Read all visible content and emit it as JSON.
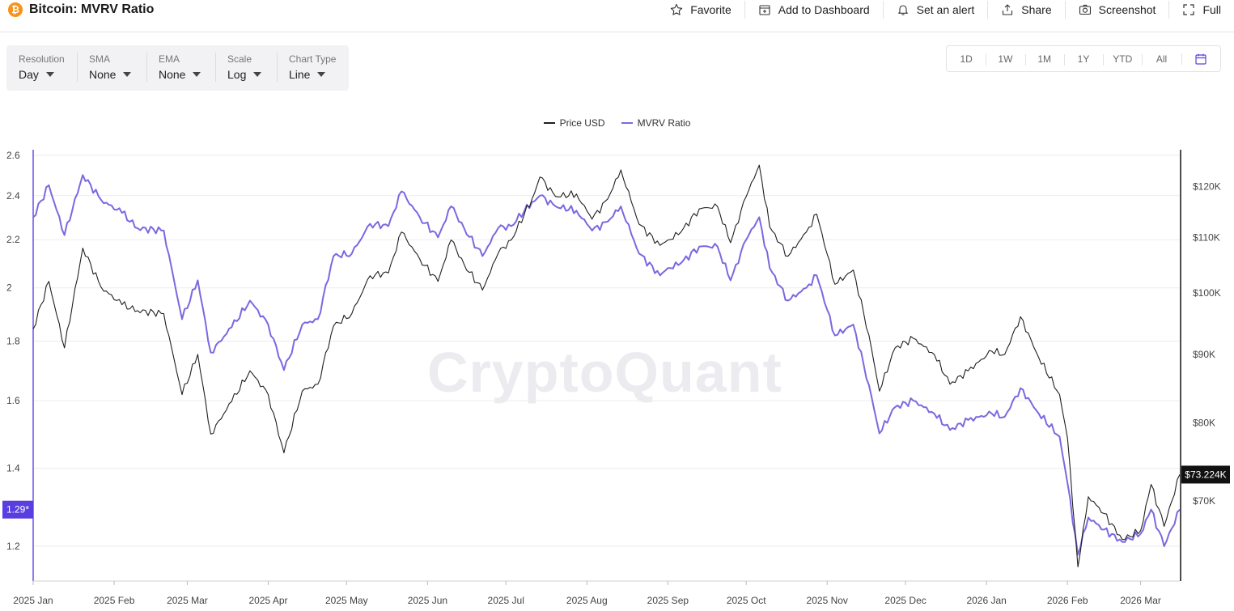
{
  "header": {
    "title": "Bitcoin: MVRV Ratio",
    "actions": [
      {
        "label": "Favorite",
        "icon": "star-icon"
      },
      {
        "label": "Add to Dashboard",
        "icon": "add-dashboard-icon"
      },
      {
        "label": "Set an alert",
        "icon": "bell-icon"
      },
      {
        "label": "Share",
        "icon": "share-icon"
      },
      {
        "label": "Screenshot",
        "icon": "camera-icon"
      },
      {
        "label": "Full",
        "icon": "fullscreen-icon"
      }
    ]
  },
  "controls": [
    {
      "label": "Resolution",
      "value": "Day"
    },
    {
      "label": "SMA",
      "value": "None"
    },
    {
      "label": "EMA",
      "value": "None"
    },
    {
      "label": "Scale",
      "value": "Log"
    },
    {
      "label": "Chart Type",
      "value": "Line"
    }
  ],
  "ranges": [
    "1D",
    "1W",
    "1M",
    "1Y",
    "YTD",
    "All"
  ],
  "watermark": "CryptoQuant",
  "colors": {
    "price": "#1f1f1f",
    "mvrv": "#7b68e0",
    "mvrv_axis": "#5a3fe0",
    "price_tag": "#111111"
  },
  "chart_data": {
    "type": "line",
    "title": "Bitcoin: MVRV Ratio",
    "legend_position": "top-center",
    "grid": true,
    "x_tick_labels": [
      "2025 Jan",
      "2025 Feb",
      "2025 Mar",
      "2025 Apr",
      "2025 May",
      "2025 Jun",
      "2025 Jul",
      "2025 Aug",
      "2025 Sep",
      "2025 Oct",
      "2025 Nov",
      "2025 Dec",
      "2026 Jan",
      "2026 Feb",
      "2026 Mar"
    ],
    "x_tick_dates": [
      "2025-01-01",
      "2025-02-01",
      "2025-03-01",
      "2025-04-01",
      "2025-05-01",
      "2025-06-01",
      "2025-07-01",
      "2025-08-01",
      "2025-09-01",
      "2025-10-01",
      "2025-11-01",
      "2025-12-01",
      "2026-01-01",
      "2026-02-01",
      "2026-03-01"
    ],
    "x_range": [
      "2025-01-01",
      "2026-03-16"
    ],
    "left_axis": {
      "scale": "log",
      "range": [
        1.12,
        2.62
      ],
      "ticks": [
        "1.2",
        "1.4",
        "1.6",
        "1.8",
        "2",
        "2.2",
        "2.4",
        "2.6"
      ],
      "current_label": "1.29*",
      "current_value": 1.29
    },
    "right_axis": {
      "scale": "log",
      "range": [
        61000,
        127500
      ],
      "ticks": [
        70000,
        80000,
        90000,
        100000,
        110000,
        120000
      ],
      "tick_labels": [
        "$70K",
        "$80K",
        "$90K",
        "$100K",
        "$110K",
        "$120K"
      ],
      "current_label": "$73.224K",
      "current_value": 73224
    },
    "series": [
      {
        "name": "Price USD",
        "axis": "right",
        "points": [
          [
            "2025-01-01",
            94000
          ],
          [
            "2025-01-07",
            102000
          ],
          [
            "2025-01-13",
            91000
          ],
          [
            "2025-01-20",
            108000
          ],
          [
            "2025-01-27",
            101000
          ],
          [
            "2025-02-04",
            98000
          ],
          [
            "2025-02-10",
            97000
          ],
          [
            "2025-02-20",
            96500
          ],
          [
            "2025-02-27",
            84000
          ],
          [
            "2025-03-05",
            90000
          ],
          [
            "2025-03-10",
            78500
          ],
          [
            "2025-03-18",
            83000
          ],
          [
            "2025-03-25",
            87500
          ],
          [
            "2025-04-01",
            84000
          ],
          [
            "2025-04-07",
            76000
          ],
          [
            "2025-04-14",
            84500
          ],
          [
            "2025-04-20",
            85500
          ],
          [
            "2025-04-26",
            94500
          ],
          [
            "2025-05-03",
            96500
          ],
          [
            "2025-05-10",
            103000
          ],
          [
            "2025-05-17",
            103500
          ],
          [
            "2025-05-22",
            111000
          ],
          [
            "2025-05-29",
            106000
          ],
          [
            "2025-06-05",
            102000
          ],
          [
            "2025-06-10",
            109500
          ],
          [
            "2025-06-15",
            105000
          ],
          [
            "2025-06-22",
            100500
          ],
          [
            "2025-06-28",
            107000
          ],
          [
            "2025-07-03",
            109500
          ],
          [
            "2025-07-11",
            117500
          ],
          [
            "2025-07-14",
            122000
          ],
          [
            "2025-07-20",
            118000
          ],
          [
            "2025-07-28",
            118500
          ],
          [
            "2025-08-03",
            113500
          ],
          [
            "2025-08-09",
            117500
          ],
          [
            "2025-08-14",
            123500
          ],
          [
            "2025-08-21",
            112500
          ],
          [
            "2025-08-29",
            108500
          ],
          [
            "2025-09-01",
            109500
          ],
          [
            "2025-09-06",
            111000
          ],
          [
            "2025-09-13",
            115500
          ],
          [
            "2025-09-20",
            116000
          ],
          [
            "2025-09-25",
            109000
          ],
          [
            "2025-10-01",
            118000
          ],
          [
            "2025-10-06",
            124500
          ],
          [
            "2025-10-10",
            112000
          ],
          [
            "2025-10-17",
            106500
          ],
          [
            "2025-10-24",
            111000
          ],
          [
            "2025-10-28",
            114500
          ],
          [
            "2025-11-04",
            101500
          ],
          [
            "2025-11-11",
            104000
          ],
          [
            "2025-11-17",
            93000
          ],
          [
            "2025-11-21",
            84500
          ],
          [
            "2025-11-27",
            91000
          ],
          [
            "2025-12-04",
            92500
          ],
          [
            "2025-12-12",
            90000
          ],
          [
            "2025-12-18",
            85500
          ],
          [
            "2025-12-25",
            87500
          ],
          [
            "2026-01-03",
            90500
          ],
          [
            "2026-01-08",
            90000
          ],
          [
            "2026-01-14",
            96000
          ],
          [
            "2026-01-21",
            89500
          ],
          [
            "2026-01-29",
            84000
          ],
          [
            "2026-02-01",
            78000
          ],
          [
            "2026-02-05",
            62500
          ],
          [
            "2026-02-09",
            70500
          ],
          [
            "2026-02-15",
            68500
          ],
          [
            "2026-02-22",
            65500
          ],
          [
            "2026-03-01",
            66500
          ],
          [
            "2026-03-05",
            72000
          ],
          [
            "2026-03-10",
            67000
          ],
          [
            "2026-03-16",
            73224
          ]
        ]
      },
      {
        "name": "MVRV Ratio",
        "axis": "left",
        "points": [
          [
            "2025-01-01",
            2.3
          ],
          [
            "2025-01-07",
            2.45
          ],
          [
            "2025-01-13",
            2.22
          ],
          [
            "2025-01-20",
            2.5
          ],
          [
            "2025-01-27",
            2.38
          ],
          [
            "2025-02-04",
            2.32
          ],
          [
            "2025-02-10",
            2.25
          ],
          [
            "2025-02-20",
            2.24
          ],
          [
            "2025-02-27",
            1.88
          ],
          [
            "2025-03-05",
            2.03
          ],
          [
            "2025-03-10",
            1.76
          ],
          [
            "2025-03-18",
            1.85
          ],
          [
            "2025-03-25",
            1.95
          ],
          [
            "2025-04-01",
            1.86
          ],
          [
            "2025-04-07",
            1.7
          ],
          [
            "2025-04-14",
            1.86
          ],
          [
            "2025-04-20",
            1.88
          ],
          [
            "2025-04-26",
            2.13
          ],
          [
            "2025-05-03",
            2.14
          ],
          [
            "2025-05-10",
            2.27
          ],
          [
            "2025-05-17",
            2.26
          ],
          [
            "2025-05-22",
            2.42
          ],
          [
            "2025-05-29",
            2.3
          ],
          [
            "2025-06-05",
            2.21
          ],
          [
            "2025-06-10",
            2.35
          ],
          [
            "2025-06-15",
            2.25
          ],
          [
            "2025-06-22",
            2.13
          ],
          [
            "2025-06-28",
            2.25
          ],
          [
            "2025-07-03",
            2.26
          ],
          [
            "2025-07-11",
            2.37
          ],
          [
            "2025-07-14",
            2.4
          ],
          [
            "2025-07-20",
            2.35
          ],
          [
            "2025-07-28",
            2.33
          ],
          [
            "2025-08-03",
            2.24
          ],
          [
            "2025-08-09",
            2.28
          ],
          [
            "2025-08-14",
            2.35
          ],
          [
            "2025-08-21",
            2.14
          ],
          [
            "2025-08-29",
            2.05
          ],
          [
            "2025-09-01",
            2.08
          ],
          [
            "2025-09-06",
            2.1
          ],
          [
            "2025-09-13",
            2.17
          ],
          [
            "2025-09-20",
            2.17
          ],
          [
            "2025-09-25",
            2.03
          ],
          [
            "2025-10-01",
            2.2
          ],
          [
            "2025-10-06",
            2.3
          ],
          [
            "2025-10-10",
            2.08
          ],
          [
            "2025-10-17",
            1.95
          ],
          [
            "2025-10-24",
            2.0
          ],
          [
            "2025-10-28",
            2.05
          ],
          [
            "2025-11-04",
            1.82
          ],
          [
            "2025-11-11",
            1.86
          ],
          [
            "2025-11-17",
            1.65
          ],
          [
            "2025-11-21",
            1.5
          ],
          [
            "2025-11-27",
            1.58
          ],
          [
            "2025-12-04",
            1.6
          ],
          [
            "2025-12-12",
            1.56
          ],
          [
            "2025-12-18",
            1.51
          ],
          [
            "2025-12-25",
            1.54
          ],
          [
            "2026-01-03",
            1.56
          ],
          [
            "2026-01-08",
            1.55
          ],
          [
            "2026-01-14",
            1.64
          ],
          [
            "2026-01-21",
            1.56
          ],
          [
            "2026-01-29",
            1.49
          ],
          [
            "2026-02-01",
            1.36
          ],
          [
            "2026-02-05",
            1.18
          ],
          [
            "2026-02-09",
            1.27
          ],
          [
            "2026-02-15",
            1.24
          ],
          [
            "2026-02-22",
            1.21
          ],
          [
            "2026-03-01",
            1.23
          ],
          [
            "2026-03-05",
            1.29
          ],
          [
            "2026-03-10",
            1.2
          ],
          [
            "2026-03-16",
            1.29
          ]
        ]
      }
    ]
  }
}
